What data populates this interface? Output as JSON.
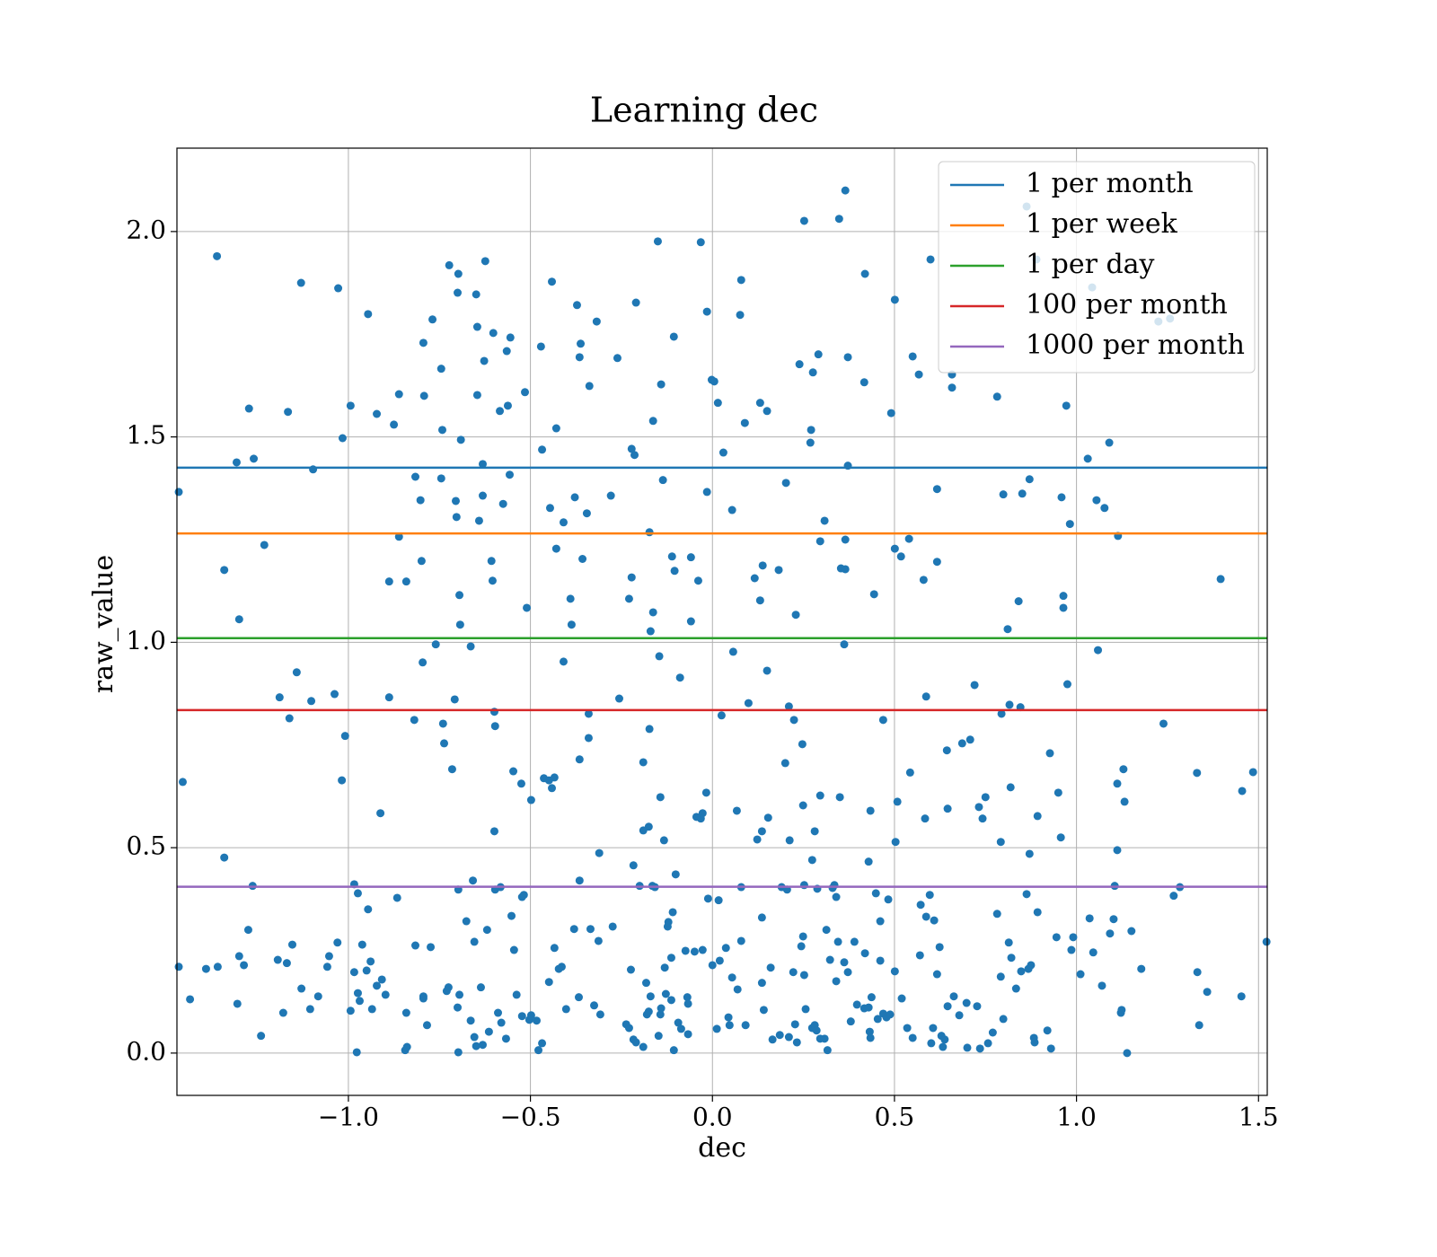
{
  "chart_data": {
    "type": "scatter",
    "title": "Learning dec",
    "xlabel": "dec",
    "ylabel": "raw_value",
    "color": "#1f77b4",
    "grid": true,
    "legend": "upper right",
    "xlim": [
      -1.471,
      1.524
    ],
    "ylim": [
      -0.103,
      2.203
    ],
    "xticks": [
      {
        "value": -1,
        "label": "−1.0"
      },
      {
        "value": -0.5,
        "label": "−0.5"
      },
      {
        "value": 0,
        "label": "0.0"
      },
      0.5,
      {
        "value": 1,
        "label": "1.0"
      },
      1.5
    ],
    "yticks": [
      {
        "value": 0,
        "label": "0.0"
      },
      0.5,
      {
        "value": 1,
        "label": "1.0"
      },
      1.5,
      {
        "value": 2,
        "label": "2.0"
      }
    ],
    "series": [
      {
        "name": "1 per month",
        "color": "#1f77b4",
        "value": 1.425
      },
      {
        "name": "1 per week",
        "color": "#ff7f0e",
        "value": 1.265
      },
      {
        "name": "1 per day",
        "color": "#2ca02c",
        "value": 1.01
      },
      {
        "name": "100 per month",
        "color": "#d62728",
        "value": 0.835
      },
      {
        "name": "1000 per month",
        "color": "#9467bd",
        "value": 0.405
      }
    ],
    "x": [
      -1.466,
      -1.455,
      -1.466,
      -1.435,
      -1.361,
      -1.341,
      -1.341,
      -1.307,
      -1.3,
      -1.273,
      -1.26,
      -1.263,
      -1.275,
      -1.231,
      -1.24,
      -1.13,
      -1.166,
      -1.097,
      -1.142,
      -1.162,
      -1.189,
      -1.102,
      -1.028,
      -0.994,
      -1.016,
      -1.038,
      -1.009,
      -1.018,
      -0.946,
      -0.922,
      -0.861,
      -0.875,
      -0.861,
      -0.888,
      -0.841,
      -0.888,
      -0.912,
      -0.816,
      -0.802,
      -0.794,
      -0.792,
      -0.799,
      -0.796,
      -0.819,
      -0.723,
      -0.698,
      -0.7,
      -0.769,
      -0.745,
      -0.691,
      -0.742,
      -0.745,
      -0.705,
      -0.703,
      -0.695,
      -0.693,
      -0.76,
      -0.664,
      -0.708,
      -0.74,
      -0.737,
      -0.715,
      -0.649,
      -0.624,
      -0.646,
      -0.627,
      -0.646,
      -0.631,
      -0.631,
      -0.641,
      -0.607,
      -0.604,
      -0.602,
      -0.555,
      -0.565,
      -0.584,
      -0.562,
      -0.515,
      -0.575,
      -0.557,
      -0.51,
      -0.599,
      -0.597,
      -0.547,
      -0.525,
      -0.498,
      -0.599,
      -0.471,
      -0.441,
      -0.468,
      -0.429,
      -0.446,
      -0.409,
      -0.429,
      -0.39,
      -0.378,
      -0.387,
      -0.409,
      -0.463,
      -0.449,
      -0.434,
      -0.441,
      -0.372,
      -0.362,
      -0.365,
      -0.338,
      -0.318,
      -0.345,
      -0.357,
      -0.34,
      -0.34,
      -0.365,
      -0.279,
      -0.261,
      -0.256,
      -0.222,
      -0.214,
      -0.21,
      -0.222,
      -0.229,
      -0.173,
      -0.163,
      -0.15,
      -0.141,
      -0.136,
      -0.163,
      -0.17,
      -0.146,
      -0.19,
      -0.173,
      -0.106,
      -0.111,
      -0.104,
      -0.059,
      -0.039,
      -0.059,
      -0.089,
      -0.032,
      -0.015,
      -0.002,
      0.005,
      0.015,
      -0.015,
      0.03,
      0.079,
      0.076,
      0.089,
      0.054,
      0.057,
      0.099,
      0.025,
      0.131,
      0.15,
      0.138,
      0.116,
      0.131,
      0.182,
      0.15,
      0.202,
      0.229,
      0.21,
      0.224,
      0.2,
      0.239,
      0.252,
      0.276,
      0.271,
      0.269,
      0.291,
      0.296,
      0.308,
      0.353,
      0.365,
      0.362,
      0.365,
      0.372,
      0.372,
      0.348,
      0.365,
      0.417,
      0.419,
      0.444,
      0.491,
      0.501,
      0.501,
      0.518,
      0.54,
      0.55,
      0.567,
      0.58,
      0.599,
      0.617,
      0.617,
      0.658,
      0.658,
      0.782,
      0.799,
      0.851,
      0.871,
      0.863,
      0.89,
      0.959,
      0.972,
      0.982,
      0.964,
      0.964,
      1.031,
      1.043,
      1.055,
      1.077,
      1.09,
      1.114,
      1.225,
      1.257,
      1.396,
      0.811,
      0.841,
      0.975,
      1.059,
      0.72,
      0.816,
      0.846,
      0.794,
      0.587,
      0.469,
      0.644,
      0.708,
      0.686,
      0.927,
      0.543,
      1.129,
      1.239,
      1.331,
      1.485,
      1.455,
      1.112,
      1.132,
      1.522,
      1.267,
      1.284,
      1.105,
      1.112,
      0.957,
      0.95,
      0.893,
      0.871,
      0.792,
      0.732,
      0.742,
      0.75,
      0.819,
      0.646,
      0.584,
      0.508,
      0.503,
      0.434,
      0.35,
      0.296,
      0.274,
      0.281,
      0.249,
      0.247,
      0.153,
      0.123,
      0.136,
      0.067,
      0.212,
      -0.017,
      -0.027,
      -0.032,
      -0.044,
      -0.143,
      -0.133,
      -0.175,
      -0.19,
      -0.217,
      -0.311,
      -0.365,
      -0.658,
      -0.582,
      -0.597,
      -0.619,
      -0.676,
      -0.698,
      -0.523,
      -0.518,
      -0.552,
      -0.984,
      -0.974,
      -0.946,
      -0.866,
      -0.939,
      -1.03,
      -0.962,
      -1.154,
      -1.194,
      -1.169,
      -1.3,
      -1.287,
      -1.391,
      -1.359,
      -1.305,
      -1.179,
      -1.129,
      -1.105,
      -1.083,
      -1.058,
      -1.053,
      -0.994,
      -0.977,
      -0.984,
      -0.974,
      -0.969,
      -0.95,
      -0.935,
      -0.922,
      -0.908,
      -0.898,
      -0.841,
      -0.844,
      -0.839,
      -0.816,
      -0.784,
      -0.774,
      -0.794,
      -0.794,
      -0.73,
      -0.725,
      -0.7,
      -0.695,
      -0.698,
      -0.664,
      -0.654,
      -0.649,
      -0.631,
      -0.636,
      -0.654,
      -0.614,
      -0.589,
      -0.58,
      -0.567,
      -0.545,
      -0.538,
      -0.523,
      -0.503,
      -0.498,
      -0.483,
      -0.478,
      -0.468,
      -0.449,
      -0.434,
      -0.422,
      -0.414,
      -0.402,
      -0.38,
      -0.367,
      -0.335,
      -0.325,
      -0.313,
      -0.308,
      -0.274,
      -0.237,
      -0.229,
      -0.224,
      -0.217,
      -0.21,
      -0.2,
      -0.19,
      -0.182,
      -0.18,
      -0.175,
      -0.17,
      -0.165,
      -0.158,
      -0.148,
      -0.143,
      -0.141,
      -0.131,
      -0.128,
      -0.123,
      -0.121,
      -0.113,
      -0.113,
      -0.109,
      -0.106,
      -0.101,
      -0.094,
      -0.086,
      -0.074,
      -0.069,
      -0.067,
      -0.067,
      -0.049,
      -0.027,
      -0.012,
      0,
      0.012,
      0.017,
      0.02,
      0.037,
      0.044,
      0.047,
      0.054,
      0.069,
      0.079,
      0.079,
      0.091,
      0.136,
      0.136,
      0.141,
      0.16,
      0.165,
      0.185,
      0.19,
      0.205,
      0.21,
      0.222,
      0.227,
      0.232,
      0.244,
      0.249,
      0.252,
      0.252,
      0.256,
      0.274,
      0.281,
      0.286,
      0.288,
      0.296,
      0.308,
      0.313,
      0.316,
      0.323,
      0.33,
      0.335,
      0.34,
      0.34,
      0.345,
      0.362,
      0.372,
      0.38,
      0.39,
      0.397,
      0.417,
      0.419,
      0.429,
      0.429,
      0.432,
      0.434,
      0.437,
      0.449,
      0.454,
      0.461,
      0.461,
      0.469,
      0.478,
      0.483,
      0.488,
      0.501,
      0.52,
      0.535,
      0.55,
      0.57,
      0.572,
      0.587,
      0.597,
      0.601,
      0.606,
      0.609,
      0.617,
      0.624,
      0.629,
      0.633,
      0.638,
      0.646,
      0.663,
      0.678,
      0.698,
      0.7,
      0.727,
      0.735,
      0.757,
      0.77,
      0.782,
      0.792,
      0.799,
      0.814,
      0.821,
      0.834,
      0.848,
      0.863,
      0.868,
      0.875,
      0.883,
      0.885,
      0.893,
      0.92,
      0.93,
      0.945,
      0.986,
      0.991,
      1.011,
      1.036,
      1.046,
      1.07,
      1.092,
      1.102,
      1.122,
      1.124,
      1.139,
      1.151,
      1.178,
      1.332,
      1.337,
      1.359,
      1.453
    ],
    "values": [
      1.366,
      0.66,
      0.21,
      0.131,
      1.94,
      1.176,
      0.476,
      1.438,
      1.056,
      1.569,
      1.447,
      0.407,
      0.3,
      1.237,
      0.042,
      1.875,
      1.561,
      1.421,
      0.927,
      0.815,
      0.866,
      0.857,
      1.862,
      1.576,
      1.497,
      0.874,
      0.772,
      0.664,
      1.799,
      1.556,
      1.604,
      1.53,
      1.257,
      1.148,
      1.148,
      0.866,
      0.584,
      1.403,
      1.346,
      1.729,
      1.6,
      1.198,
      0.951,
      0.811,
      1.918,
      1.897,
      1.851,
      1.786,
      1.666,
      1.493,
      1.517,
      1.399,
      1.344,
      1.305,
      1.115,
      1.043,
      0.995,
      0.99,
      0.861,
      0.802,
      0.754,
      0.691,
      1.847,
      1.928,
      1.768,
      1.685,
      1.602,
      1.434,
      1.357,
      1.296,
      1.198,
      1.15,
      1.753,
      1.742,
      1.709,
      1.563,
      1.576,
      1.609,
      1.337,
      1.408,
      1.084,
      0.831,
      0.796,
      0.686,
      0.656,
      0.616,
      0.54,
      1.72,
      1.878,
      1.469,
      1.521,
      1.327,
      1.292,
      1.228,
      1.106,
      1.353,
      1.043,
      0.953,
      0.669,
      0.664,
      0.671,
      0.645,
      1.821,
      1.727,
      1.694,
      1.624,
      1.781,
      1.314,
      1.203,
      0.826,
      0.767,
      0.715,
      1.357,
      1.692,
      0.863,
      1.471,
      1.456,
      1.827,
      1.158,
      1.106,
      1.268,
      1.539,
      1.976,
      1.628,
      1.395,
      1.073,
      1.027,
      0.966,
      0.708,
      0.789,
      1.744,
      1.209,
      1.174,
      1.207,
      1.15,
      1.051,
      0.914,
      1.974,
      1.805,
      1.639,
      1.635,
      1.583,
      1.366,
      1.462,
      1.882,
      1.797,
      1.534,
      1.322,
      0.977,
      0.852,
      0.822,
      1.583,
      1.563,
      1.187,
      1.156,
      1.102,
      1.176,
      0.931,
      1.388,
      1.067,
      0.844,
      0.811,
      0.706,
      1.677,
      2.026,
      1.657,
      1.517,
      1.486,
      1.701,
      1.246,
      1.296,
      1.18,
      1.178,
      0.995,
      1.25,
      1.43,
      1.694,
      2.031,
      2.1,
      1.633,
      1.897,
      1.117,
      1.558,
      1.834,
      1.228,
      1.209,
      1.252,
      1.696,
      1.652,
      1.152,
      1.932,
      1.373,
      1.196,
      1.652,
      1.62,
      1.598,
      1.36,
      1.362,
      1.397,
      2.061,
      1.932,
      1.353,
      1.576,
      1.288,
      1.113,
      1.084,
      1.447,
      1.864,
      1.346,
      1.327,
      1.486,
      1.259,
      1.781,
      1.788,
      1.154,
      1.032,
      1.1,
      0.898,
      0.981,
      0.896,
      0.848,
      0.842,
      0.826,
      0.868,
      0.811,
      0.737,
      0.763,
      0.754,
      0.73,
      0.683,
      0.691,
      0.802,
      0.682,
      0.684,
      0.638,
      0.656,
      0.612,
      0.271,
      0.383,
      0.404,
      0.407,
      0.494,
      0.525,
      0.634,
      0.577,
      0.485,
      0.514,
      0.599,
      0.571,
      0.623,
      0.647,
      0.595,
      0.571,
      0.612,
      0.514,
      0.59,
      0.623,
      0.627,
      0.47,
      0.54,
      0.603,
      0.752,
      0.573,
      0.52,
      0.54,
      0.59,
      0.518,
      0.634,
      0.584,
      0.571,
      0.575,
      0.623,
      0.518,
      0.551,
      0.542,
      0.457,
      0.487,
      0.42,
      0.42,
      0.404,
      0.398,
      0.3,
      0.321,
      0.398,
      0.38,
      0.385,
      0.334,
      0.411,
      0.389,
      0.35,
      0.378,
      0.223,
      0.269,
      0.264,
      0.264,
      0.227,
      0.219,
      0.236,
      0.214,
      0.205,
      0.21,
      0.12,
      0.098,
      0.157,
      0.107,
      0.138,
      0.21,
      0.236,
      0.103,
      0.002,
      0.197,
      0.146,
      0.127,
      0.201,
      0.107,
      0.164,
      0.179,
      0.142,
      0.098,
      0.007,
      0.015,
      0.262,
      0.068,
      0.258,
      0.138,
      0.133,
      0.151,
      0.16,
      0.111,
      0.142,
      0.002,
      0.079,
      0.039,
      0.017,
      0.02,
      0.16,
      0.271,
      0.052,
      0.098,
      0.074,
      0.035,
      0.251,
      0.142,
      0.09,
      0.081,
      0.092,
      0.079,
      0.007,
      0.024,
      0.173,
      0.256,
      0.205,
      0.21,
      0.107,
      0.302,
      0.136,
      0.302,
      0.116,
      0.273,
      0.094,
      0.308,
      0.07,
      0.061,
      0.203,
      0.033,
      0.026,
      0.407,
      0.015,
      0.171,
      0.094,
      0.101,
      0.138,
      0.407,
      0.404,
      0.042,
      0.094,
      0.109,
      0.208,
      0.144,
      0.308,
      0.319,
      0.232,
      0.129,
      0.343,
      0.007,
      0.435,
      0.074,
      0.059,
      0.249,
      0.136,
      0.046,
      0.12,
      0.247,
      0.251,
      0.376,
      0.214,
      0.059,
      0.372,
      0.225,
      0.256,
      0.087,
      0.068,
      0.184,
      0.155,
      0.273,
      0.404,
      0.068,
      0.171,
      0.33,
      0.105,
      0.208,
      0.033,
      0.044,
      0.404,
      0.398,
      0.039,
      0.197,
      0.07,
      0.026,
      0.26,
      0.284,
      0.409,
      0.19,
      0.107,
      0.061,
      0.068,
      0.055,
      0.4,
      0.035,
      0.035,
      0.3,
      0.007,
      0.227,
      0.402,
      0.409,
      0.175,
      0.38,
      0.271,
      0.221,
      0.197,
      0.077,
      0.271,
      0.118,
      0.109,
      0.243,
      0.466,
      0.111,
      0.052,
      0.037,
      0.136,
      0.389,
      0.083,
      0.321,
      0.225,
      0.096,
      0.087,
      0.374,
      0.094,
      0.199,
      0.133,
      0.061,
      0.037,
      0.238,
      0.361,
      0.332,
      0.385,
      0.024,
      0.061,
      0.323,
      0.192,
      0.258,
      0.042,
      0.015,
      0.033,
      0.114,
      0.138,
      0.092,
      0.122,
      0.013,
      0.114,
      0.011,
      0.024,
      0.05,
      0.339,
      0.186,
      0.083,
      0.269,
      0.232,
      0.157,
      0.199,
      0.387,
      0.205,
      0.214,
      0.037,
      0.026,
      0.343,
      0.055,
      0.011,
      0.282,
      0.251,
      0.282,
      0.192,
      0.328,
      0.245,
      0.164,
      0.291,
      0.326,
      0.098,
      0.105,
      0,
      0.297,
      0.205,
      0.197,
      0.068,
      0.149,
      0.138
    ]
  }
}
